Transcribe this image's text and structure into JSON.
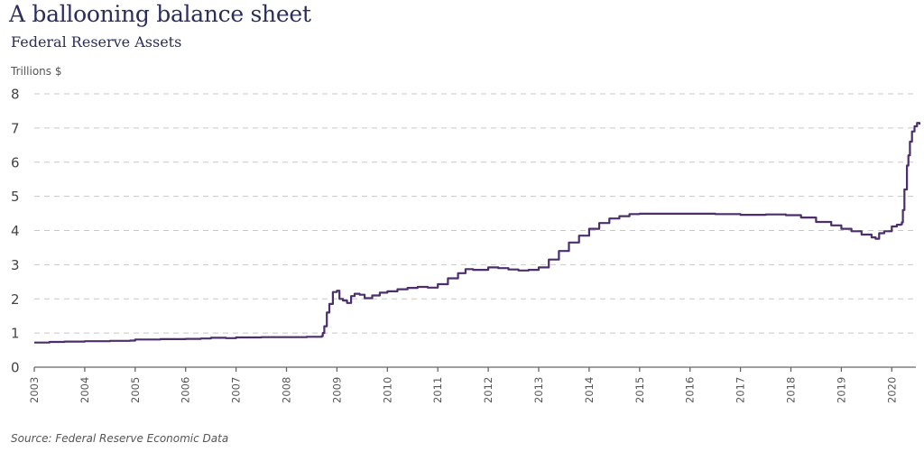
{
  "chart_data": {
    "type": "line",
    "title": "A ballooning balance sheet",
    "subtitle": "Federal Reserve Assets",
    "ylabel": "Trillions $",
    "xlabel": "",
    "source": "Source: Federal Reserve Economic Data",
    "ylim": [
      0,
      8
    ],
    "xlim": [
      2003,
      2020.55
    ],
    "yticks": [
      0,
      1,
      2,
      3,
      4,
      5,
      6,
      7,
      8
    ],
    "xticks": [
      "2003",
      "2004",
      "2005",
      "2006",
      "2007",
      "2008",
      "2009",
      "2010",
      "2011",
      "2012",
      "2013",
      "2014",
      "2015",
      "2016",
      "2017",
      "2018",
      "2019",
      "2020"
    ],
    "grid": true,
    "legend": "none",
    "colors": {
      "line": "#4b2e6b",
      "grid": "#c8c8c8",
      "axis": "#666666",
      "title": "#2b2d5c"
    },
    "series": [
      {
        "name": "Federal Reserve Assets",
        "x": [
          2003.0,
          2003.3,
          2003.6,
          2004.0,
          2004.5,
          2004.9,
          2005.0,
          2005.5,
          2006.0,
          2006.3,
          2006.5,
          2006.8,
          2007.0,
          2007.5,
          2008.0,
          2008.4,
          2008.7,
          2008.72,
          2008.75,
          2008.8,
          2008.85,
          2008.92,
          2009.0,
          2009.05,
          2009.12,
          2009.2,
          2009.28,
          2009.35,
          2009.45,
          2009.55,
          2009.7,
          2009.85,
          2010.0,
          2010.2,
          2010.4,
          2010.6,
          2010.8,
          2011.0,
          2011.2,
          2011.4,
          2011.55,
          2011.7,
          2012.0,
          2012.2,
          2012.4,
          2012.6,
          2012.8,
          2013.0,
          2013.2,
          2013.4,
          2013.6,
          2013.8,
          2014.0,
          2014.2,
          2014.4,
          2014.6,
          2014.8,
          2015.0,
          2015.5,
          2016.0,
          2016.5,
          2017.0,
          2017.5,
          2017.9,
          2018.2,
          2018.5,
          2018.8,
          2019.0,
          2019.2,
          2019.4,
          2019.6,
          2019.68,
          2019.75,
          2019.85,
          2020.0,
          2020.1,
          2020.18,
          2020.2,
          2020.22,
          2020.25,
          2020.3,
          2020.33,
          2020.36,
          2020.4,
          2020.45,
          2020.5,
          2020.55
        ],
        "values": [
          0.72,
          0.74,
          0.75,
          0.76,
          0.77,
          0.78,
          0.81,
          0.82,
          0.83,
          0.84,
          0.86,
          0.85,
          0.87,
          0.88,
          0.88,
          0.89,
          0.91,
          1.0,
          1.2,
          1.6,
          1.85,
          2.2,
          2.24,
          2.0,
          1.95,
          1.88,
          2.08,
          2.15,
          2.12,
          2.02,
          2.1,
          2.18,
          2.22,
          2.28,
          2.32,
          2.35,
          2.33,
          2.43,
          2.6,
          2.75,
          2.87,
          2.85,
          2.92,
          2.9,
          2.86,
          2.83,
          2.85,
          2.92,
          3.15,
          3.4,
          3.65,
          3.85,
          4.05,
          4.22,
          4.35,
          4.42,
          4.48,
          4.49,
          4.49,
          4.49,
          4.48,
          4.46,
          4.47,
          4.45,
          4.38,
          4.25,
          4.15,
          4.05,
          3.98,
          3.88,
          3.8,
          3.76,
          3.92,
          3.98,
          4.12,
          4.17,
          4.18,
          4.24,
          4.6,
          5.2,
          5.9,
          6.2,
          6.6,
          6.9,
          7.05,
          7.15,
          7.1
        ]
      }
    ]
  },
  "header": {
    "title": "A ballooning balance sheet",
    "subtitle": "Federal Reserve Assets",
    "unit": "Trillions $"
  },
  "footer": {
    "source": "Source: Federal Reserve Economic Data"
  }
}
